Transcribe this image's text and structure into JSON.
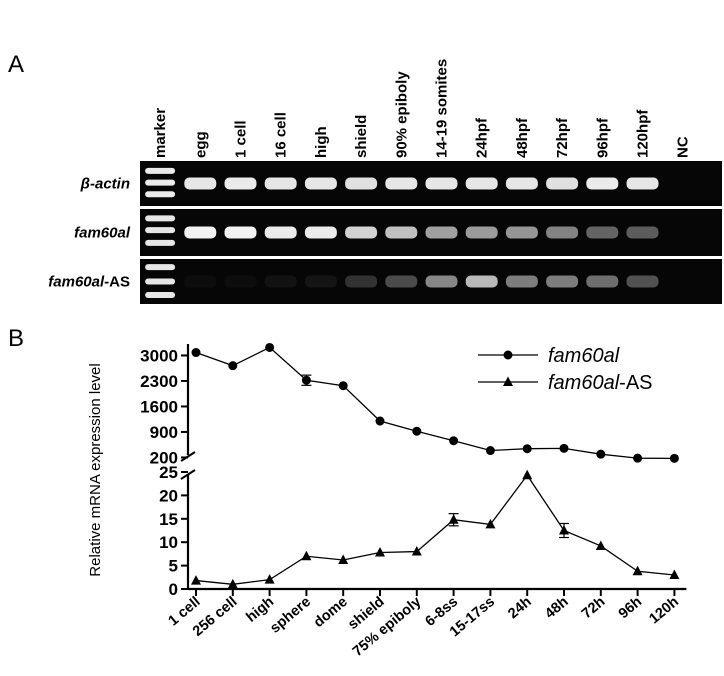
{
  "panel_a": {
    "label": "A",
    "lanes": [
      "marker",
      "egg",
      "1 cell",
      "16 cell",
      "high",
      "shield",
      "90% epiboly",
      "14-19 somites",
      "24hpf",
      "48hpf",
      "72hpf",
      "96hpf",
      "120hpf",
      "NC"
    ],
    "rows": [
      {
        "gene": "β-actin",
        "suffix": "",
        "intensities": [
          0.92,
          0.9,
          0.92,
          0.9,
          0.9,
          0.88,
          0.9,
          0.9,
          0.9,
          0.9,
          0.88,
          0.92,
          0.9,
          0.0
        ]
      },
      {
        "gene": "fam60al",
        "suffix": "",
        "intensities": [
          0.9,
          0.95,
          0.95,
          0.92,
          0.92,
          0.82,
          0.75,
          0.62,
          0.6,
          0.58,
          0.5,
          0.38,
          0.35,
          0.0
        ]
      },
      {
        "gene": "fam60al",
        "suffix": "-AS",
        "intensities": [
          0.9,
          0.03,
          0.03,
          0.05,
          0.06,
          0.18,
          0.28,
          0.52,
          0.72,
          0.48,
          0.48,
          0.42,
          0.3,
          0.0
        ]
      }
    ]
  },
  "panel_b": {
    "label": "B"
  },
  "chart_data": {
    "type": "line",
    "ylabel": "Relative mRNA expression level",
    "categories": [
      "1 cell",
      "256 cell",
      "high",
      "sphere",
      "dome",
      "shield",
      "75% epiboly",
      "6-8ss",
      "15-17ss",
      "24h",
      "48h",
      "72h",
      "96h",
      "120h"
    ],
    "upper_axis": {
      "ylim": [
        130,
        3150
      ],
      "ticks": [
        200,
        900,
        1600,
        2300,
        3000
      ]
    },
    "lower_axis": {
      "ylim": [
        0,
        25
      ],
      "ticks": [
        0,
        5,
        10,
        15,
        20,
        25
      ]
    },
    "legend_position": "top-right",
    "series": [
      {
        "name": "fam60al",
        "suffix": "",
        "marker": "circle",
        "axis": "upper",
        "values": [
          3080,
          2720,
          3220,
          2320,
          2170,
          1200,
          920,
          660,
          390,
          440,
          450,
          290,
          180,
          175
        ],
        "errors": [
          0,
          0,
          0,
          140,
          0,
          0,
          0,
          0,
          0,
          0,
          0,
          0,
          0,
          0
        ]
      },
      {
        "name": "fam60al",
        "suffix": "-AS",
        "marker": "triangle",
        "axis": "lower",
        "values": [
          1.8,
          1.0,
          2.0,
          7.0,
          6.2,
          7.8,
          8.0,
          14.8,
          13.8,
          24.3,
          12.5,
          9.2,
          3.8,
          3.0
        ],
        "errors": [
          0,
          0,
          0,
          0,
          0,
          0,
          0,
          1.3,
          0,
          0,
          1.5,
          0,
          0,
          0
        ]
      }
    ]
  }
}
